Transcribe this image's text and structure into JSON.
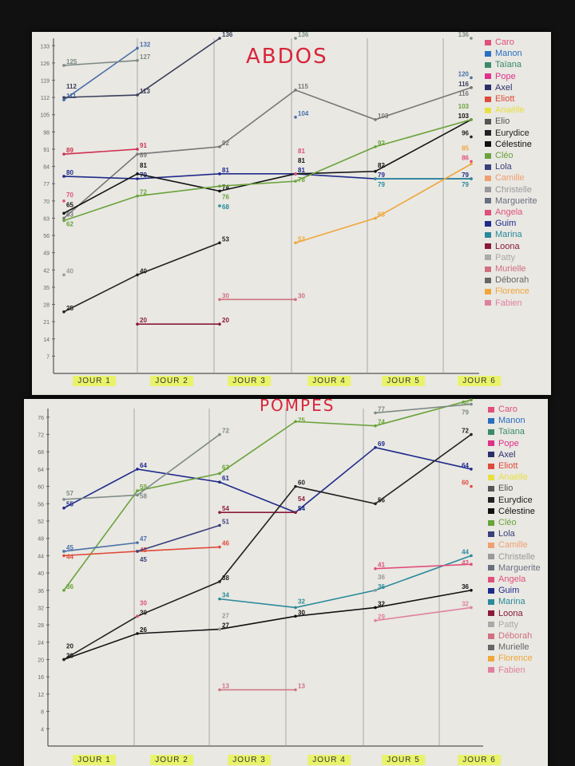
{
  "chart_data": [
    {
      "type": "line",
      "title": "ABDOS",
      "categories": [
        "JOUR 1",
        "JOUR 2",
        "JOUR 3",
        "JOUR 4",
        "JOUR 5",
        "JOUR 6"
      ],
      "yticks": [
        7,
        14,
        21,
        28,
        35,
        42,
        49,
        56,
        63,
        70,
        77,
        84,
        91,
        98,
        105,
        112,
        119,
        126,
        133
      ],
      "ylim": [
        0,
        136
      ],
      "grid": "vertical",
      "legend": "right",
      "legend_entries": [
        "Caro",
        "Manon",
        "Taïana",
        "Pope",
        "Axel",
        "Eliott",
        "Anaëlle",
        "Elio",
        "Eurydice",
        "Célestine",
        "Cléo",
        "Lola",
        "Camille",
        "Christelle",
        "Marguerite",
        "Angela",
        "Guim",
        "Marina",
        "Loona",
        "Patty",
        "Murielle",
        "Déborah",
        "Florence",
        "Fabien"
      ],
      "series": [
        {
          "name": "Manon",
          "color": "#4a6fa8",
          "values": [
            111,
            132,
            null,
            104,
            null,
            120
          ]
        },
        {
          "name": "Taïana",
          "color": "#7d8a86",
          "values": [
            125,
            127,
            null,
            136,
            null,
            136
          ]
        },
        {
          "name": "Axel",
          "color": "#3a3f5a",
          "values": [
            112,
            113,
            136,
            null,
            null,
            116
          ]
        },
        {
          "name": "Pope",
          "color": "#d0304f",
          "values": [
            89,
            91,
            null,
            null,
            null,
            null
          ]
        },
        {
          "name": "Marguerite",
          "color": "#777",
          "values": [
            63,
            89,
            92,
            115,
            103,
            116
          ]
        },
        {
          "name": "Guim",
          "color": "#1f2a8a",
          "values": [
            80,
            79,
            81,
            81,
            79,
            79
          ]
        },
        {
          "name": "Célestine",
          "color": "#111",
          "values": [
            65,
            81,
            74,
            81,
            82,
            103
          ]
        },
        {
          "name": "Cléo",
          "color": "#6aa33a",
          "values": [
            62,
            72,
            76,
            78,
            92,
            103
          ]
        },
        {
          "name": "Eurydice",
          "color": "#222",
          "values": [
            25,
            40,
            53,
            null,
            null,
            96
          ]
        },
        {
          "name": "Caro",
          "color": "#e0507a",
          "values": [
            70,
            null,
            null,
            81,
            null,
            86
          ]
        },
        {
          "name": "Christelle",
          "color": "#999",
          "values": [
            40,
            null,
            null,
            null,
            null,
            null
          ]
        },
        {
          "name": "Marina",
          "color": "#2a8a9a",
          "values": [
            null,
            null,
            68,
            null,
            79,
            79
          ]
        },
        {
          "name": "Florence",
          "color": "#f0a63a",
          "values": [
            null,
            null,
            null,
            53,
            63,
            85
          ]
        },
        {
          "name": "Loona",
          "color": "#8a1a3a",
          "values": [
            null,
            20,
            20,
            null,
            null,
            null
          ]
        },
        {
          "name": "Murielle",
          "color": "#d07080",
          "values": [
            null,
            null,
            30,
            30,
            null,
            null
          ]
        }
      ]
    },
    {
      "type": "line",
      "title": "POMPES",
      "categories": [
        "JOUR 1",
        "JOUR 2",
        "JOUR 3",
        "JOUR 4",
        "JOUR 5",
        "JOUR 6"
      ],
      "yticks": [
        4,
        8,
        12,
        16,
        20,
        24,
        28,
        32,
        36,
        40,
        44,
        48,
        52,
        56,
        60,
        64,
        68,
        72,
        76
      ],
      "ylim": [
        0,
        78
      ],
      "grid": "vertical",
      "legend": "right",
      "legend_entries": [
        "Caro",
        "Manon",
        "Taïana",
        "Pope",
        "Axel",
        "Eliott",
        "Anaëlle",
        "Elio",
        "Eurydice",
        "Célestine",
        "Cléo",
        "Lola",
        "Camille",
        "Christelle",
        "Marguerite",
        "Angela",
        "Guim",
        "Marina",
        "Loona",
        "Patty",
        "Déborah",
        "Murielle",
        "Florence",
        "Fabien"
      ],
      "series": [
        {
          "name": "Guim",
          "color": "#1f2a8a",
          "values": [
            55,
            64,
            61,
            54,
            69,
            64
          ]
        },
        {
          "name": "Cléo",
          "color": "#6aa33a",
          "values": [
            36,
            59,
            63,
            75,
            74,
            80
          ]
        },
        {
          "name": "Taïana",
          "color": "#7d8a86",
          "values": [
            57,
            58,
            72,
            null,
            77,
            79
          ]
        },
        {
          "name": "Loona",
          "color": "#8a1a3a",
          "values": [
            null,
            null,
            54,
            54,
            null,
            null
          ]
        },
        {
          "name": "Manon",
          "color": "#4a6fa8",
          "values": [
            45,
            47,
            null,
            null,
            null,
            null
          ]
        },
        {
          "name": "Célestine",
          "color": "#111",
          "values": [
            20,
            26,
            27,
            30,
            32,
            36
          ]
        },
        {
          "name": "Eurydice",
          "color": "#222",
          "values": [
            20,
            30,
            38,
            60,
            56,
            72
          ]
        },
        {
          "name": "Marina",
          "color": "#2a8a9a",
          "values": [
            null,
            null,
            34,
            32,
            36,
            44
          ]
        },
        {
          "name": "Eliott",
          "color": "#e04a3a",
          "values": [
            44,
            45,
            46,
            null,
            null,
            60
          ]
        },
        {
          "name": "Lola",
          "color": "#3a3f7a",
          "values": [
            null,
            45,
            51,
            null,
            null,
            null
          ]
        },
        {
          "name": "Murielle",
          "color": "#d07080",
          "values": [
            null,
            null,
            13,
            13,
            null,
            null
          ]
        },
        {
          "name": "Fabien",
          "color": "#e080a0",
          "values": [
            null,
            null,
            null,
            null,
            29,
            32
          ]
        },
        {
          "name": "Angela",
          "color": "#e0507a",
          "values": [
            null,
            30,
            null,
            null,
            41,
            42
          ]
        },
        {
          "name": "Patty",
          "color": "#999",
          "values": [
            null,
            null,
            27,
            null,
            36,
            null
          ]
        }
      ]
    }
  ],
  "legend_colors": [
    "#e0507a",
    "#2a6fc0",
    "#3a8a6a",
    "#e0308a",
    "#2a2f6a",
    "#e04a3a",
    "#e8e040",
    "#555",
    "#222",
    "#111",
    "#6aa33a",
    "#3a3f7a",
    "#f0a070",
    "#999",
    "#6a6f80",
    "#e0507a",
    "#1f2a8a",
    "#2a8a9a",
    "#8a1a3a",
    "#aaa",
    "#d07080",
    "#666",
    "#f0a63a",
    "#e080a0"
  ]
}
